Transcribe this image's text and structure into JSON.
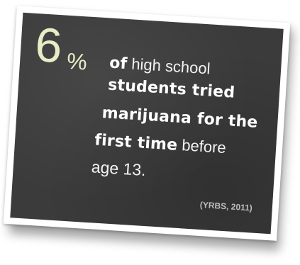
{
  "stat": {
    "number": "6",
    "percent_sign": "%",
    "line1_a": "of",
    "line1_b": " high school",
    "line2": "students tried",
    "line3": "marijuana for the",
    "line4_a": "first time",
    "line4_b": " before",
    "line5": "age 13.",
    "citation": "(YRBS, 2011)"
  },
  "colors": {
    "board": "#3b3b3b",
    "accent": "#e7edc6",
    "text": "#ffffff",
    "citation": "#bdbdbd"
  }
}
